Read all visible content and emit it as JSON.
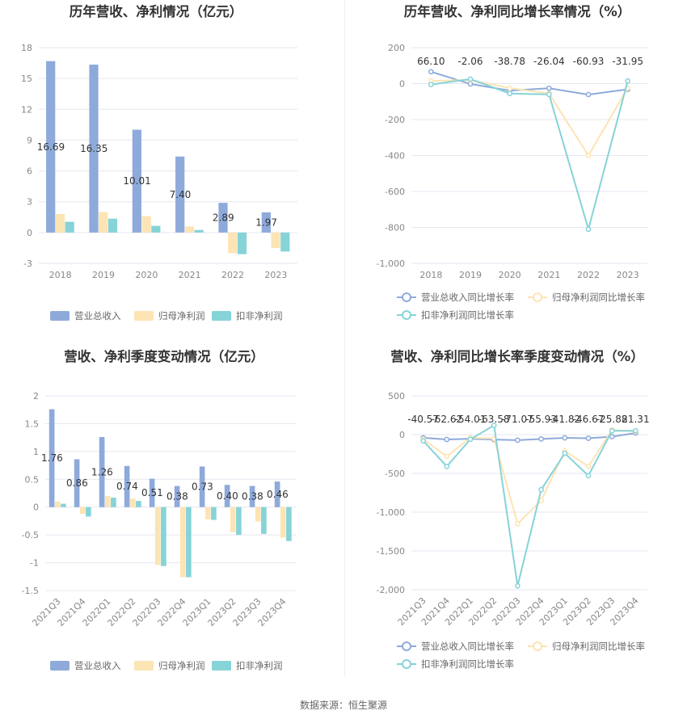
{
  "footer": {
    "source": "数据来源：恒生聚源"
  },
  "colors": {
    "revenue": "#8eaadb",
    "net_profit": "#fce4b4",
    "deducted_profit": "#86d3d8",
    "revenue_line": "#8eaadb",
    "net_profit_line": "#fce4b4",
    "deducted_line": "#86d3d8"
  },
  "chart_data": [
    {
      "id": "annual-amounts",
      "type": "bar",
      "title": "历年营收、净利情况（亿元）",
      "categories": [
        "2018",
        "2019",
        "2020",
        "2021",
        "2022",
        "2023"
      ],
      "ylim": [
        -3,
        18
      ],
      "yticks": [
        -3,
        0,
        3,
        6,
        9,
        12,
        15,
        18
      ],
      "grid": true,
      "legend_position": "bottom",
      "series": [
        {
          "name": "营业总收入",
          "values": [
            16.69,
            16.35,
            10.01,
            7.4,
            2.89,
            1.97
          ],
          "labels": [
            "16.69",
            "16.35",
            "10.01",
            "7.40",
            "2.89",
            "1.97"
          ]
        },
        {
          "name": "归母净利润",
          "values": [
            1.8,
            2.0,
            1.6,
            0.6,
            -2.0,
            -1.5
          ]
        },
        {
          "name": "扣非净利润",
          "values": [
            1.05,
            1.35,
            0.65,
            0.25,
            -2.1,
            -1.85
          ]
        }
      ]
    },
    {
      "id": "annual-growth",
      "type": "line",
      "title": "历年营收、净利同比增长率情况（%）",
      "categories": [
        "2018",
        "2019",
        "2020",
        "2021",
        "2022",
        "2023"
      ],
      "ylim": [
        -1000,
        200
      ],
      "yticks": [
        -1000,
        -800,
        -600,
        -400,
        -200,
        0,
        200
      ],
      "ytick_labels": [
        "-1,000",
        "-800",
        "-600",
        "-400",
        "-200",
        "0",
        "200"
      ],
      "grid": true,
      "legend_position": "bottom",
      "series": [
        {
          "name": "营业总收入同比增长率",
          "values": [
            66.1,
            -2.06,
            -38.78,
            -26.04,
            -60.93,
            -31.95
          ],
          "labels": [
            "66.10",
            "-2.06",
            "-38.78",
            "-26.04",
            "-60.93",
            "-31.95"
          ]
        },
        {
          "name": "归母净利润同比增长率",
          "values": [
            15,
            20,
            -25,
            -55,
            -400,
            -25
          ]
        },
        {
          "name": "扣非净利润同比增长率",
          "values": [
            -5,
            25,
            -55,
            -60,
            -810,
            15
          ]
        }
      ]
    },
    {
      "id": "quarterly-amounts",
      "type": "bar",
      "title": "营收、净利季度变动情况（亿元）",
      "categories": [
        "2021Q3",
        "2021Q4",
        "2022Q1",
        "2022Q2",
        "2022Q3",
        "2022Q4",
        "2023Q1",
        "2023Q2",
        "2023Q3",
        "2023Q4"
      ],
      "ylim": [
        -1.5,
        2
      ],
      "yticks": [
        -1.5,
        -1,
        -0.5,
        0,
        0.5,
        1,
        1.5,
        2
      ],
      "grid": true,
      "legend_position": "bottom",
      "series": [
        {
          "name": "营业总收入",
          "values": [
            1.76,
            0.86,
            1.26,
            0.74,
            0.51,
            0.38,
            0.73,
            0.4,
            0.38,
            0.46
          ],
          "labels": [
            "1.76",
            "0.86",
            "1.26",
            "0.74",
            "0.51",
            "0.38",
            "0.73",
            "0.40",
            "0.38",
            "0.46"
          ]
        },
        {
          "name": "归母净利润",
          "values": [
            0.1,
            -0.12,
            0.2,
            0.15,
            -1.04,
            -1.26,
            -0.22,
            -0.45,
            -0.26,
            -0.55
          ]
        },
        {
          "name": "扣非净利润",
          "values": [
            0.06,
            -0.17,
            0.17,
            0.11,
            -1.06,
            -1.26,
            -0.23,
            -0.5,
            -0.48,
            -0.61
          ]
        }
      ]
    },
    {
      "id": "quarterly-growth",
      "type": "line",
      "title": "营收、净利同比增长率季度变动情况（%）",
      "categories": [
        "2021Q3",
        "2021Q4",
        "2022Q1",
        "2022Q2",
        "2022Q3",
        "2022Q4",
        "2023Q1",
        "2023Q2",
        "2023Q3",
        "2023Q4"
      ],
      "ylim": [
        -2000,
        500
      ],
      "yticks": [
        -2000,
        -1500,
        -1000,
        -500,
        0,
        500
      ],
      "ytick_labels": [
        "-2,000",
        "-1,500",
        "-1,000",
        "-500",
        "0",
        "500"
      ],
      "grid": true,
      "legend_position": "bottom",
      "series": [
        {
          "name": "营业总收入同比增长率",
          "values": [
            -40.57,
            -62.62,
            -54.01,
            -63.58,
            -71.07,
            -55.93,
            -41.82,
            -46.67,
            -25.88,
            21.31
          ],
          "labels": [
            "-40.57",
            "-62.62",
            "-54.01",
            "-63.58",
            "-71.07",
            "-55.93",
            "-41.82",
            "-46.67",
            "-25.88",
            "21.31"
          ]
        },
        {
          "name": "归母净利润同比增长率",
          "values": [
            -60,
            -280,
            -40,
            -50,
            -1150,
            -850,
            -210,
            -410,
            60,
            40
          ]
        },
        {
          "name": "扣非净利润同比增长率",
          "values": [
            -80,
            -410,
            -60,
            120,
            -1950,
            -710,
            -240,
            -530,
            50,
            50
          ]
        }
      ]
    }
  ]
}
